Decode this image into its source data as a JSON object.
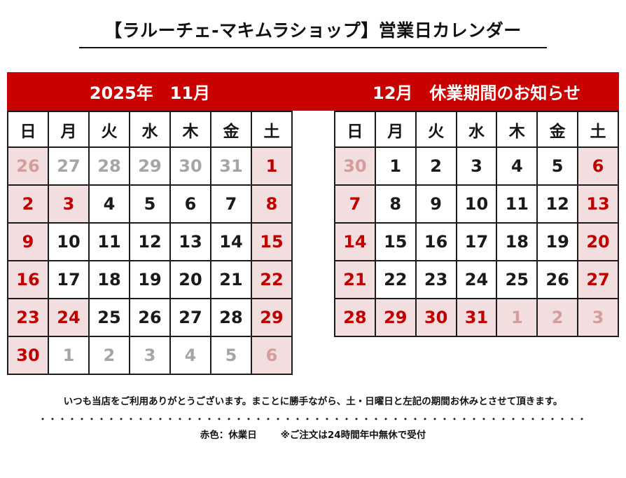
{
  "title": "【ラルーチェ-マキムラショップ】営業日カレンダー",
  "banner": {
    "left": "2025年　11月",
    "right": "12月　休業期間のお知らせ"
  },
  "weekdays": [
    {
      "label": "日",
      "type": "sun"
    },
    {
      "label": "月",
      "type": "plain"
    },
    {
      "label": "火",
      "type": "plain"
    },
    {
      "label": "水",
      "type": "plain"
    },
    {
      "label": "木",
      "type": "plain"
    },
    {
      "label": "金",
      "type": "plain"
    },
    {
      "label": "土",
      "type": "sat"
    }
  ],
  "calendars": [
    {
      "name": "2025年11月",
      "rows": [
        [
          {
            "d": "26",
            "s": "out-closed"
          },
          {
            "d": "27",
            "s": "out-work"
          },
          {
            "d": "28",
            "s": "out-work"
          },
          {
            "d": "29",
            "s": "out-work"
          },
          {
            "d": "30",
            "s": "out-work"
          },
          {
            "d": "31",
            "s": "out-work"
          },
          {
            "d": "1",
            "s": "closed"
          }
        ],
        [
          {
            "d": "2",
            "s": "closed"
          },
          {
            "d": "3",
            "s": "closed"
          },
          {
            "d": "4",
            "s": "work"
          },
          {
            "d": "5",
            "s": "work"
          },
          {
            "d": "6",
            "s": "work"
          },
          {
            "d": "7",
            "s": "work"
          },
          {
            "d": "8",
            "s": "closed"
          }
        ],
        [
          {
            "d": "9",
            "s": "closed"
          },
          {
            "d": "10",
            "s": "work"
          },
          {
            "d": "11",
            "s": "work"
          },
          {
            "d": "12",
            "s": "work"
          },
          {
            "d": "13",
            "s": "work"
          },
          {
            "d": "14",
            "s": "work"
          },
          {
            "d": "15",
            "s": "closed"
          }
        ],
        [
          {
            "d": "16",
            "s": "closed"
          },
          {
            "d": "17",
            "s": "work"
          },
          {
            "d": "18",
            "s": "work"
          },
          {
            "d": "19",
            "s": "work"
          },
          {
            "d": "20",
            "s": "work"
          },
          {
            "d": "21",
            "s": "work"
          },
          {
            "d": "22",
            "s": "closed"
          }
        ],
        [
          {
            "d": "23",
            "s": "closed"
          },
          {
            "d": "24",
            "s": "closed"
          },
          {
            "d": "25",
            "s": "work"
          },
          {
            "d": "26",
            "s": "work"
          },
          {
            "d": "27",
            "s": "work"
          },
          {
            "d": "28",
            "s": "work"
          },
          {
            "d": "29",
            "s": "closed"
          }
        ],
        [
          {
            "d": "30",
            "s": "closed"
          },
          {
            "d": "1",
            "s": "out-work"
          },
          {
            "d": "2",
            "s": "out-work"
          },
          {
            "d": "3",
            "s": "out-work"
          },
          {
            "d": "4",
            "s": "out-work"
          },
          {
            "d": "5",
            "s": "out-work"
          },
          {
            "d": "6",
            "s": "out-closed"
          }
        ]
      ]
    },
    {
      "name": "2025年12月",
      "rows": [
        [
          {
            "d": "30",
            "s": "out-closed"
          },
          {
            "d": "1",
            "s": "work"
          },
          {
            "d": "2",
            "s": "work"
          },
          {
            "d": "3",
            "s": "work"
          },
          {
            "d": "4",
            "s": "work"
          },
          {
            "d": "5",
            "s": "work"
          },
          {
            "d": "6",
            "s": "closed"
          }
        ],
        [
          {
            "d": "7",
            "s": "closed"
          },
          {
            "d": "8",
            "s": "work"
          },
          {
            "d": "9",
            "s": "work"
          },
          {
            "d": "10",
            "s": "work"
          },
          {
            "d": "11",
            "s": "work"
          },
          {
            "d": "12",
            "s": "work"
          },
          {
            "d": "13",
            "s": "closed"
          }
        ],
        [
          {
            "d": "14",
            "s": "closed"
          },
          {
            "d": "15",
            "s": "work"
          },
          {
            "d": "16",
            "s": "work"
          },
          {
            "d": "17",
            "s": "work"
          },
          {
            "d": "18",
            "s": "work"
          },
          {
            "d": "19",
            "s": "work"
          },
          {
            "d": "20",
            "s": "closed"
          }
        ],
        [
          {
            "d": "21",
            "s": "closed"
          },
          {
            "d": "22",
            "s": "work"
          },
          {
            "d": "23",
            "s": "work"
          },
          {
            "d": "24",
            "s": "work"
          },
          {
            "d": "25",
            "s": "work"
          },
          {
            "d": "26",
            "s": "work"
          },
          {
            "d": "27",
            "s": "closed"
          }
        ],
        [
          {
            "d": "28",
            "s": "closed"
          },
          {
            "d": "29",
            "s": "closed"
          },
          {
            "d": "30",
            "s": "closed"
          },
          {
            "d": "31",
            "s": "closed"
          },
          {
            "d": "1",
            "s": "out-closed"
          },
          {
            "d": "2",
            "s": "out-closed"
          },
          {
            "d": "3",
            "s": "out-closed"
          }
        ]
      ]
    }
  ],
  "footer": {
    "notice": "いつも当店をご利用ありがとうございます。まことに勝手ながら、土・日曜日と左記の期間お休みとさせて頂きます。",
    "dots": "・・・・・・・・・・・・・・・・・・・・・・・・・・・・・・・・・・・・・・・・・・・・・・・・・・・・・・・・",
    "legend_left": "赤色：休業日",
    "legend_right": "※ご注文は24時間年中無休で受付"
  },
  "colors": {
    "banner_red": "#C90101",
    "holiday_bg": "#F2DEDE",
    "holiday_red": "#C00000",
    "sunday_red": "#DD0806",
    "adjacent_gray": "#A6A6A6",
    "adjacent_pink": "#D49C9C",
    "text_black": "#1A1A1A"
  }
}
